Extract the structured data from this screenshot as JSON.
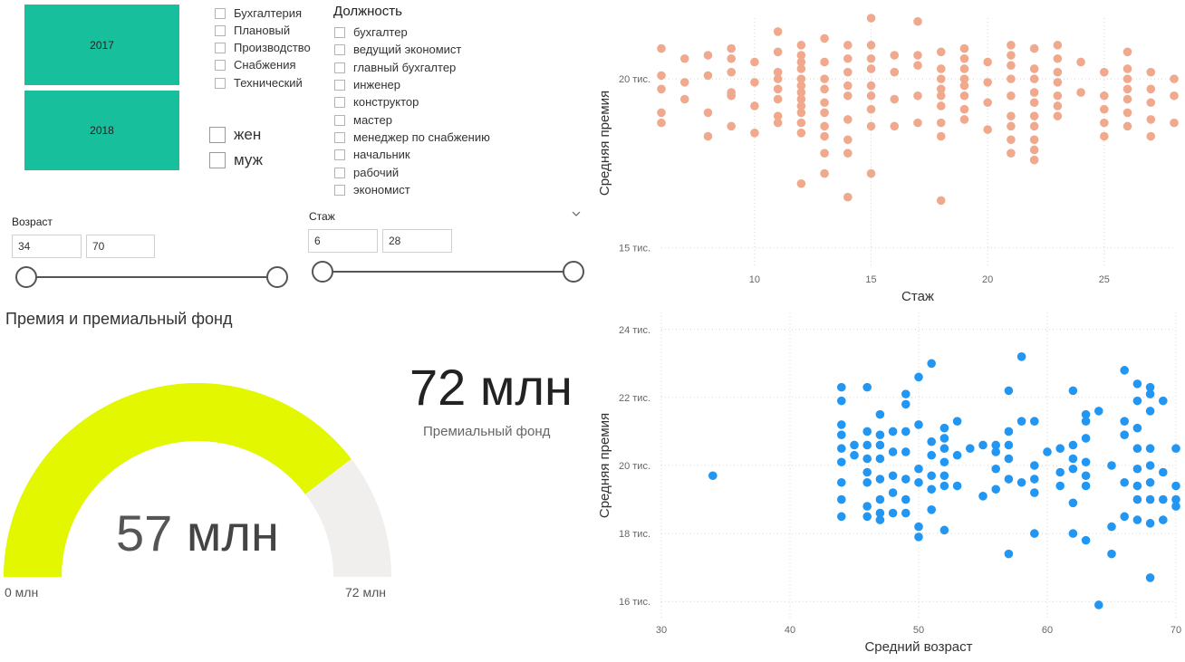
{
  "year_tiles": [
    "2017",
    "2018"
  ],
  "departments": [
    "Бухгалтерия",
    "Плановый",
    "Производство",
    "Снабжения",
    "Технический"
  ],
  "gender": [
    "жен",
    "муж"
  ],
  "position_filter": {
    "title": "Должность",
    "items": [
      "бухгалтер",
      "ведущий экономист",
      "главный бухгалтер",
      "инженер",
      "конструктор",
      "мастер",
      "менеджер по снабжению",
      "начальник",
      "рабочий",
      "экономист"
    ]
  },
  "age_slider": {
    "label": "Возраст",
    "min_value": "34",
    "max_value": "70"
  },
  "tenure_slider": {
    "label": "Стаж",
    "min_value": "6",
    "max_value": "28",
    "chevron": "chevron-down-icon"
  },
  "gauge": {
    "title": "Премия и премиальный фонд",
    "value_text": "57 млн",
    "value_number": "57",
    "value_unit": "млн",
    "min_label": "0 млн",
    "max_label": "72 млн",
    "fill_color": "#e2f700",
    "track_color": "#f0efed",
    "value": 57,
    "max": 72
  },
  "kpi": {
    "value": "72 млн",
    "label": "Премиальный фонд"
  },
  "colors": {
    "tile": "#17bf9c",
    "scatter_top": "#f0a98c",
    "scatter_bottom": "#2196f3"
  },
  "chart_data": [
    {
      "type": "scatter",
      "xlabel": "Стаж",
      "ylabel": "Средняя премия",
      "xlim": [
        6,
        28
      ],
      "ylim": [
        14400,
        21800
      ],
      "xticks": [
        10,
        15,
        20,
        25
      ],
      "xtick_labels": [
        "10",
        "15",
        "20",
        "25"
      ],
      "yticks": [
        15000,
        20000
      ],
      "ytick_labels": [
        "15 тис.",
        "20 тис."
      ],
      "grid": true,
      "color": "#f0a98c",
      "points": [
        [
          6,
          20900
        ],
        [
          6,
          20100
        ],
        [
          6,
          19700
        ],
        [
          6,
          19000
        ],
        [
          6,
          18700
        ],
        [
          7,
          20600
        ],
        [
          7,
          19900
        ],
        [
          7,
          19400
        ],
        [
          8,
          20700
        ],
        [
          8,
          20100
        ],
        [
          8,
          19000
        ],
        [
          8,
          18300
        ],
        [
          9,
          20900
        ],
        [
          9,
          20600
        ],
        [
          9,
          20200
        ],
        [
          9,
          19600
        ],
        [
          9,
          19500
        ],
        [
          9,
          18600
        ],
        [
          10,
          20500
        ],
        [
          10,
          19900
        ],
        [
          10,
          19200
        ],
        [
          10,
          18400
        ],
        [
          11,
          21400
        ],
        [
          11,
          20800
        ],
        [
          11,
          20200
        ],
        [
          11,
          20000
        ],
        [
          11,
          19700
        ],
        [
          11,
          19400
        ],
        [
          11,
          18900
        ],
        [
          11,
          18700
        ],
        [
          12,
          21000
        ],
        [
          12,
          20700
        ],
        [
          12,
          20500
        ],
        [
          12,
          20300
        ],
        [
          12,
          20000
        ],
        [
          12,
          19800
        ],
        [
          12,
          19600
        ],
        [
          12,
          19400
        ],
        [
          12,
          19200
        ],
        [
          12,
          19000
        ],
        [
          12,
          18700
        ],
        [
          12,
          18400
        ],
        [
          12,
          16900
        ],
        [
          13,
          21200
        ],
        [
          13,
          20500
        ],
        [
          13,
          20000
        ],
        [
          13,
          19700
        ],
        [
          13,
          19300
        ],
        [
          13,
          19000
        ],
        [
          13,
          18600
        ],
        [
          13,
          18300
        ],
        [
          13,
          17800
        ],
        [
          13,
          17200
        ],
        [
          14,
          21000
        ],
        [
          14,
          20600
        ],
        [
          14,
          20200
        ],
        [
          14,
          19800
        ],
        [
          14,
          19500
        ],
        [
          14,
          18800
        ],
        [
          14,
          18200
        ],
        [
          14,
          17800
        ],
        [
          14,
          16500
        ],
        [
          15,
          21800
        ],
        [
          15,
          21000
        ],
        [
          15,
          20600
        ],
        [
          15,
          20300
        ],
        [
          15,
          19800
        ],
        [
          15,
          19500
        ],
        [
          15,
          19100
        ],
        [
          15,
          18600
        ],
        [
          15,
          17200
        ],
        [
          16,
          20700
        ],
        [
          16,
          20200
        ],
        [
          16,
          19400
        ],
        [
          16,
          18600
        ],
        [
          17,
          21700
        ],
        [
          17,
          20700
        ],
        [
          17,
          20400
        ],
        [
          17,
          19500
        ],
        [
          17,
          18700
        ],
        [
          18,
          20800
        ],
        [
          18,
          20300
        ],
        [
          18,
          20000
        ],
        [
          18,
          19700
        ],
        [
          18,
          19500
        ],
        [
          18,
          19200
        ],
        [
          18,
          18700
        ],
        [
          18,
          18300
        ],
        [
          18,
          16400
        ],
        [
          19,
          20900
        ],
        [
          19,
          20600
        ],
        [
          19,
          20300
        ],
        [
          19,
          20000
        ],
        [
          19,
          19800
        ],
        [
          19,
          19500
        ],
        [
          19,
          19100
        ],
        [
          19,
          18800
        ],
        [
          20,
          20500
        ],
        [
          20,
          19900
        ],
        [
          20,
          19300
        ],
        [
          20,
          18500
        ],
        [
          21,
          21000
        ],
        [
          21,
          20700
        ],
        [
          21,
          20400
        ],
        [
          21,
          20000
        ],
        [
          21,
          19500
        ],
        [
          21,
          18900
        ],
        [
          21,
          18600
        ],
        [
          21,
          18200
        ],
        [
          21,
          17800
        ],
        [
          22,
          20900
        ],
        [
          22,
          20300
        ],
        [
          22,
          20000
        ],
        [
          22,
          19600
        ],
        [
          22,
          19300
        ],
        [
          22,
          18900
        ],
        [
          22,
          18600
        ],
        [
          22,
          18200
        ],
        [
          22,
          17900
        ],
        [
          22,
          17600
        ],
        [
          23,
          21000
        ],
        [
          23,
          20600
        ],
        [
          23,
          20200
        ],
        [
          23,
          19900
        ],
        [
          23,
          19500
        ],
        [
          23,
          19200
        ],
        [
          23,
          18900
        ],
        [
          24,
          20500
        ],
        [
          24,
          19600
        ],
        [
          25,
          20200
        ],
        [
          25,
          19500
        ],
        [
          25,
          19100
        ],
        [
          25,
          18700
        ],
        [
          25,
          18300
        ],
        [
          26,
          20800
        ],
        [
          26,
          20300
        ],
        [
          26,
          20000
        ],
        [
          26,
          19700
        ],
        [
          26,
          19400
        ],
        [
          26,
          19000
        ],
        [
          26,
          18600
        ],
        [
          27,
          20200
        ],
        [
          27,
          19700
        ],
        [
          27,
          19300
        ],
        [
          27,
          18800
        ],
        [
          27,
          18300
        ],
        [
          28,
          20000
        ],
        [
          28,
          19500
        ],
        [
          28,
          18700
        ]
      ]
    },
    {
      "type": "scatter",
      "xlabel": "Средний возраст",
      "ylabel": "Средняя премия",
      "xlim": [
        30,
        70
      ],
      "ylim": [
        15500,
        24500
      ],
      "xticks": [
        30,
        40,
        50,
        60,
        70
      ],
      "xtick_labels": [
        "30",
        "40",
        "50",
        "60",
        "70"
      ],
      "yticks": [
        16000,
        18000,
        20000,
        22000,
        24000
      ],
      "ytick_labels": [
        "16 тис.",
        "18 тис.",
        "20 тис.",
        "22 тис.",
        "24 тис."
      ],
      "grid": true,
      "color": "#2196f3",
      "points": [
        [
          34,
          19700
        ],
        [
          44,
          22300
        ],
        [
          44,
          21900
        ],
        [
          44,
          21200
        ],
        [
          44,
          20900
        ],
        [
          44,
          20500
        ],
        [
          44,
          20100
        ],
        [
          44,
          19500
        ],
        [
          44,
          19000
        ],
        [
          44,
          18500
        ],
        [
          45,
          20600
        ],
        [
          45,
          20300
        ],
        [
          46,
          22300
        ],
        [
          46,
          21000
        ],
        [
          46,
          20600
        ],
        [
          46,
          20200
        ],
        [
          46,
          19800
        ],
        [
          46,
          19500
        ],
        [
          46,
          18800
        ],
        [
          46,
          18500
        ],
        [
          47,
          21500
        ],
        [
          47,
          20900
        ],
        [
          47,
          20600
        ],
        [
          47,
          20200
        ],
        [
          47,
          19600
        ],
        [
          47,
          19000
        ],
        [
          47,
          18600
        ],
        [
          47,
          18400
        ],
        [
          48,
          21000
        ],
        [
          48,
          20400
        ],
        [
          48,
          19700
        ],
        [
          48,
          19200
        ],
        [
          48,
          18600
        ],
        [
          49,
          22100
        ],
        [
          49,
          21800
        ],
        [
          49,
          21000
        ],
        [
          49,
          20400
        ],
        [
          49,
          19600
        ],
        [
          49,
          19000
        ],
        [
          49,
          18600
        ],
        [
          50,
          22600
        ],
        [
          50,
          21200
        ],
        [
          50,
          19900
        ],
        [
          50,
          19500
        ],
        [
          50,
          18200
        ],
        [
          50,
          17900
        ],
        [
          51,
          23000
        ],
        [
          51,
          20700
        ],
        [
          51,
          20300
        ],
        [
          51,
          19700
        ],
        [
          51,
          19300
        ],
        [
          51,
          18700
        ],
        [
          52,
          21100
        ],
        [
          52,
          20800
        ],
        [
          52,
          20500
        ],
        [
          52,
          20100
        ],
        [
          52,
          19700
        ],
        [
          52,
          19400
        ],
        [
          52,
          18100
        ],
        [
          53,
          21300
        ],
        [
          53,
          20300
        ],
        [
          53,
          19400
        ],
        [
          54,
          20500
        ],
        [
          55,
          20600
        ],
        [
          55,
          19100
        ],
        [
          56,
          20600
        ],
        [
          56,
          20400
        ],
        [
          56,
          19900
        ],
        [
          56,
          19300
        ],
        [
          57,
          22200
        ],
        [
          57,
          21000
        ],
        [
          57,
          20600
        ],
        [
          57,
          20200
        ],
        [
          57,
          19600
        ],
        [
          57,
          17400
        ],
        [
          58,
          23200
        ],
        [
          58,
          21300
        ],
        [
          58,
          19500
        ],
        [
          59,
          21300
        ],
        [
          59,
          20000
        ],
        [
          59,
          19600
        ],
        [
          59,
          19200
        ],
        [
          59,
          18000
        ],
        [
          60,
          20400
        ],
        [
          61,
          20500
        ],
        [
          61,
          19800
        ],
        [
          61,
          19400
        ],
        [
          62,
          22200
        ],
        [
          62,
          20600
        ],
        [
          62,
          20200
        ],
        [
          62,
          19900
        ],
        [
          62,
          18900
        ],
        [
          62,
          18000
        ],
        [
          63,
          21500
        ],
        [
          63,
          21300
        ],
        [
          63,
          20800
        ],
        [
          63,
          20100
        ],
        [
          63,
          19700
        ],
        [
          63,
          19400
        ],
        [
          63,
          17800
        ],
        [
          64,
          21600
        ],
        [
          64,
          15900
        ],
        [
          65,
          20000
        ],
        [
          65,
          18200
        ],
        [
          65,
          17400
        ],
        [
          66,
          22800
        ],
        [
          66,
          21300
        ],
        [
          66,
          20900
        ],
        [
          66,
          19500
        ],
        [
          66,
          18500
        ],
        [
          67,
          22400
        ],
        [
          67,
          21900
        ],
        [
          67,
          21100
        ],
        [
          67,
          20500
        ],
        [
          67,
          19900
        ],
        [
          67,
          19400
        ],
        [
          67,
          19000
        ],
        [
          67,
          18400
        ],
        [
          68,
          22300
        ],
        [
          68,
          22100
        ],
        [
          68,
          21600
        ],
        [
          68,
          20500
        ],
        [
          68,
          20000
        ],
        [
          68,
          19500
        ],
        [
          68,
          19000
        ],
        [
          68,
          18300
        ],
        [
          68,
          16700
        ],
        [
          69,
          21900
        ],
        [
          69,
          19800
        ],
        [
          69,
          19000
        ],
        [
          69,
          18400
        ],
        [
          70,
          20500
        ],
        [
          70,
          19400
        ],
        [
          70,
          19000
        ],
        [
          70,
          18800
        ]
      ]
    }
  ]
}
